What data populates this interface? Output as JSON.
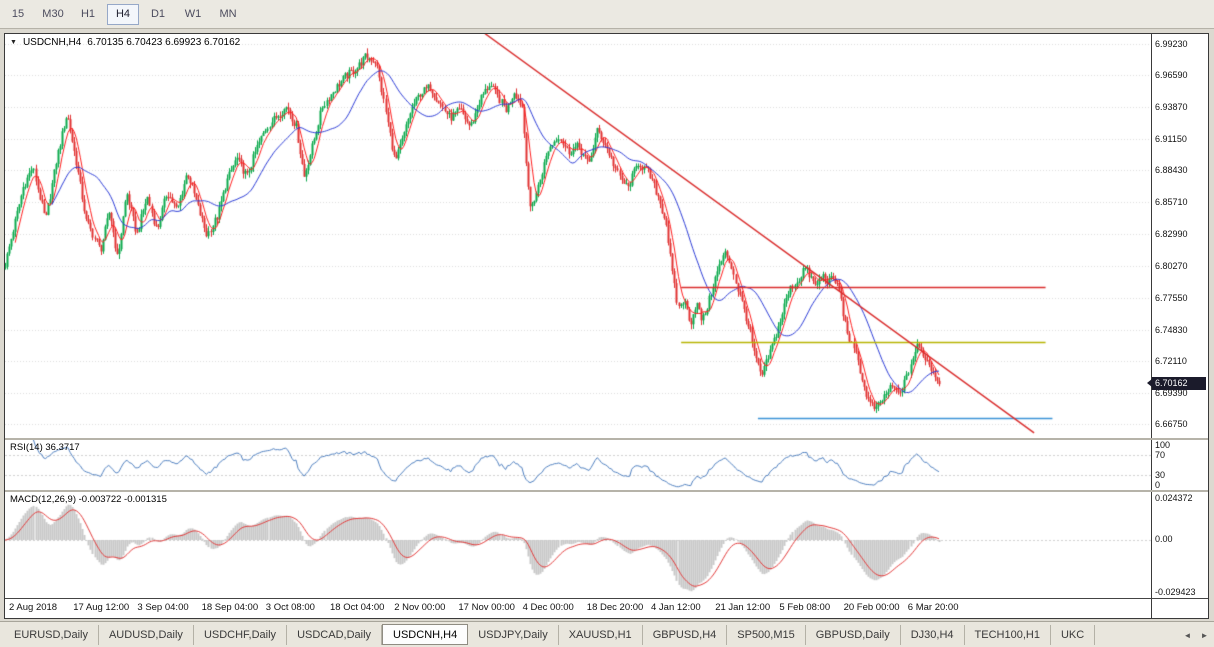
{
  "icons": {
    "chart_dropdown": "▼",
    "tab_scroll_left": "◄",
    "tab_scroll_right": "►"
  },
  "toolbar": {
    "timeframes": [
      {
        "label": "15",
        "active": false
      },
      {
        "label": "M30",
        "active": false
      },
      {
        "label": "H1",
        "active": false
      },
      {
        "label": "H4",
        "active": true
      },
      {
        "label": "D1",
        "active": false
      },
      {
        "label": "W1",
        "active": false
      },
      {
        "label": "MN",
        "active": false
      }
    ]
  },
  "chart": {
    "title": "USDCNH,H4",
    "ohlc": "6.70135 6.70423 6.69923 6.70162",
    "price_badge": "6.70162",
    "price_ticks": [
      "6.99230",
      "6.96590",
      "6.93870",
      "6.91150",
      "6.88430",
      "6.85710",
      "6.82990",
      "6.80270",
      "6.77550",
      "6.74830",
      "6.72110",
      "6.69390",
      "6.66750"
    ],
    "time_labels": [
      "2 Aug 2018",
      "17 Aug 12:00",
      "3 Sep 04:00",
      "18 Sep 04:00",
      "3 Oct 08:00",
      "18 Oct 04:00",
      "2 Nov 00:00",
      "17 Nov 00:00",
      "4 Dec 00:00",
      "18 Dec 20:00",
      "4 Jan 12:00",
      "21 Jan 12:00",
      "5 Feb 08:00",
      "20 Feb 00:00",
      "6 Mar 20:00"
    ]
  },
  "rsi": {
    "label": "RSI(14) 36.3717",
    "ticks": [
      "100",
      "70",
      "30",
      "0"
    ]
  },
  "macd": {
    "label": "MACD(12,26,9) -0.003722 -0.001315",
    "ticks": [
      "0.024372",
      "0.00",
      "-0.029423"
    ]
  },
  "tabs": {
    "items": [
      "EURUSD,Daily",
      "AUDUSD,Daily",
      "USDCHF,Daily",
      "USDCAD,Daily",
      "USDCNH,H4",
      "USDJPY,Daily",
      "XAUUSD,H1",
      "GBPUSD,H4",
      "SP500,M15",
      "GBPUSD,Daily",
      "DJ30,H4",
      "TECH100,H1",
      "UKC"
    ],
    "active": "USDCNH,H4"
  },
  "chart_data": {
    "type": "candlestick",
    "symbol": "USDCNH",
    "timeframe": "H4",
    "ohlc": {
      "open": 6.70135,
      "high": 6.70423,
      "low": 6.69923,
      "close": 6.70162
    },
    "ylim": [
      6.6556,
      7.0009
    ],
    "macd_ylim": [
      -0.029423,
      0.024372
    ],
    "rsi_scale": [
      0,
      100
    ],
    "n_candles": 460,
    "time_labels": [
      "2 Aug 2018",
      "17 Aug 12:00",
      "3 Sep 04:00",
      "18 Sep 04:00",
      "3 Oct 08:00",
      "18 Oct 04:00",
      "2 Nov 00:00",
      "17 Nov 00:00",
      "4 Dec 00:00",
      "18 Dec 20:00",
      "4 Jan 12:00",
      "21 Jan 12:00",
      "5 Feb 08:00",
      "20 Feb 00:00",
      "6 Mar 20:00"
    ],
    "close_path": [
      [
        0.007,
        6.833
      ],
      [
        0.016,
        6.87
      ],
      [
        0.024,
        6.887
      ],
      [
        0.035,
        6.841
      ],
      [
        0.045,
        6.895
      ],
      [
        0.054,
        6.933
      ],
      [
        0.063,
        6.887
      ],
      [
        0.071,
        6.841
      ],
      [
        0.083,
        6.816
      ],
      [
        0.091,
        6.85
      ],
      [
        0.098,
        6.808
      ],
      [
        0.106,
        6.866
      ],
      [
        0.115,
        6.829
      ],
      [
        0.124,
        6.862
      ],
      [
        0.132,
        6.833
      ],
      [
        0.141,
        6.866
      ],
      [
        0.15,
        6.85
      ],
      [
        0.159,
        6.883
      ],
      [
        0.167,
        6.858
      ],
      [
        0.176,
        6.829
      ],
      [
        0.185,
        6.845
      ],
      [
        0.193,
        6.875
      ],
      [
        0.202,
        6.895
      ],
      [
        0.211,
        6.879
      ],
      [
        0.22,
        6.904
      ],
      [
        0.228,
        6.921
      ],
      [
        0.237,
        6.931
      ],
      [
        0.246,
        6.939
      ],
      [
        0.254,
        6.921
      ],
      [
        0.261,
        6.879
      ],
      [
        0.268,
        6.904
      ],
      [
        0.277,
        6.939
      ],
      [
        0.286,
        6.952
      ],
      [
        0.296,
        6.964
      ],
      [
        0.307,
        6.972
      ],
      [
        0.315,
        6.982
      ],
      [
        0.324,
        6.977
      ],
      [
        0.333,
        6.929
      ],
      [
        0.34,
        6.891
      ],
      [
        0.347,
        6.912
      ],
      [
        0.354,
        6.936
      ],
      [
        0.362,
        6.95
      ],
      [
        0.371,
        6.956
      ],
      [
        0.38,
        6.941
      ],
      [
        0.388,
        6.929
      ],
      [
        0.397,
        6.936
      ],
      [
        0.406,
        6.921
      ],
      [
        0.415,
        6.946
      ],
      [
        0.423,
        6.958
      ],
      [
        0.43,
        6.947
      ],
      [
        0.437,
        6.936
      ],
      [
        0.444,
        6.952
      ],
      [
        0.451,
        6.939
      ],
      [
        0.458,
        6.85
      ],
      [
        0.465,
        6.87
      ],
      [
        0.474,
        6.902
      ],
      [
        0.483,
        6.914
      ],
      [
        0.491,
        6.9
      ],
      [
        0.5,
        6.905
      ],
      [
        0.509,
        6.889
      ],
      [
        0.517,
        6.919
      ],
      [
        0.526,
        6.902
      ],
      [
        0.535,
        6.88
      ],
      [
        0.543,
        6.869
      ],
      [
        0.552,
        6.891
      ],
      [
        0.561,
        6.883
      ],
      [
        0.57,
        6.862
      ],
      [
        0.577,
        6.839
      ],
      [
        0.582,
        6.799
      ],
      [
        0.587,
        6.766
      ],
      [
        0.592,
        6.774
      ],
      [
        0.598,
        6.754
      ],
      [
        0.603,
        6.772
      ],
      [
        0.608,
        6.755
      ],
      [
        0.613,
        6.769
      ],
      [
        0.618,
        6.787
      ],
      [
        0.624,
        6.805
      ],
      [
        0.629,
        6.814
      ],
      [
        0.634,
        6.802
      ],
      [
        0.639,
        6.783
      ],
      [
        0.645,
        6.764
      ],
      [
        0.65,
        6.744
      ],
      [
        0.655,
        6.722
      ],
      [
        0.66,
        6.708
      ],
      [
        0.665,
        6.722
      ],
      [
        0.671,
        6.739
      ],
      [
        0.676,
        6.754
      ],
      [
        0.681,
        6.772
      ],
      [
        0.686,
        6.785
      ],
      [
        0.692,
        6.79
      ],
      [
        0.697,
        6.802
      ],
      [
        0.702,
        6.794
      ],
      [
        0.707,
        6.785
      ],
      [
        0.713,
        6.795
      ],
      [
        0.718,
        6.789
      ],
      [
        0.723,
        6.792
      ],
      [
        0.728,
        6.783
      ],
      [
        0.733,
        6.754
      ],
      [
        0.739,
        6.733
      ],
      [
        0.744,
        6.722
      ],
      [
        0.749,
        6.699
      ],
      [
        0.754,
        6.685
      ],
      [
        0.76,
        6.68
      ],
      [
        0.765,
        6.688
      ],
      [
        0.77,
        6.695
      ],
      [
        0.775,
        6.7
      ],
      [
        0.78,
        6.692
      ],
      [
        0.786,
        6.705
      ],
      [
        0.791,
        6.722
      ],
      [
        0.796,
        6.735
      ],
      [
        0.801,
        6.727
      ],
      [
        0.807,
        6.717
      ],
      [
        0.812,
        6.708
      ],
      [
        0.815,
        6.70162
      ]
    ],
    "indicators": {
      "ma_fast_period": 6,
      "ma_slow_period": 24,
      "rsi": {
        "period": 14,
        "value": 36.3717,
        "levels": [
          70,
          30
        ]
      },
      "macd": {
        "fast": 12,
        "slow": 26,
        "signal": 9,
        "value": -0.003722,
        "signal_value": -0.001315
      }
    },
    "overlays": {
      "trendline": {
        "x1": 0.415,
        "p1": 7.004,
        "x2": 0.898,
        "p2": 6.66,
        "color": "#d92b2b"
      },
      "hlines": [
        {
          "price": 6.7845,
          "x1": 0.59,
          "x2": 0.908,
          "color": "#d92b2b"
        },
        {
          "price": 6.738,
          "x1": 0.59,
          "x2": 0.908,
          "color": "#b7b400"
        },
        {
          "price": 6.673,
          "x1": 0.657,
          "x2": 0.914,
          "color": "#3a93d6"
        }
      ]
    },
    "colors": {
      "up": "#0ba94c",
      "down": "#e03232",
      "ma_fast": "#ff1f1f",
      "ma_slow": "#2b3bd6",
      "rsi": "#4e7fbf",
      "macd_hist": "#c8c8c8",
      "macd_signal": "#e23a3a",
      "grid": "#dcdcdc"
    },
    "current_price": 6.70162
  }
}
